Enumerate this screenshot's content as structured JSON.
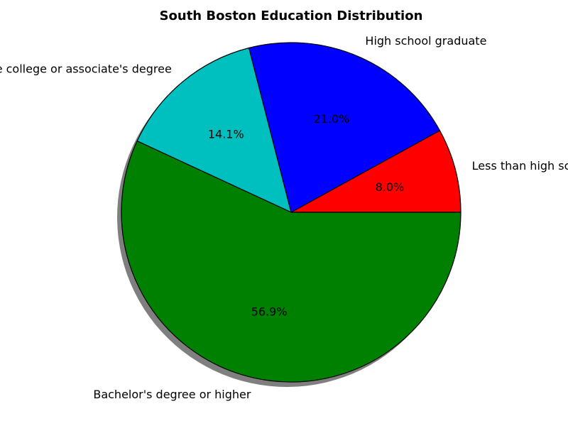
{
  "chart_data": {
    "type": "pie",
    "title": "South Boston Education Distribution",
    "categories": [
      "Less than high school",
      "High school graduate",
      "Some college or associate's degree",
      "Bachelor's degree or higher"
    ],
    "values": [
      8.0,
      21.0,
      14.1,
      56.9
    ],
    "value_labels": [
      "8.0%",
      "21.0%",
      "14.1%",
      "56.9%"
    ],
    "colors": [
      "#ff0000",
      "#0000ff",
      "#00bfbf",
      "#008000"
    ],
    "shadow": true,
    "edge_color": "#000000"
  }
}
